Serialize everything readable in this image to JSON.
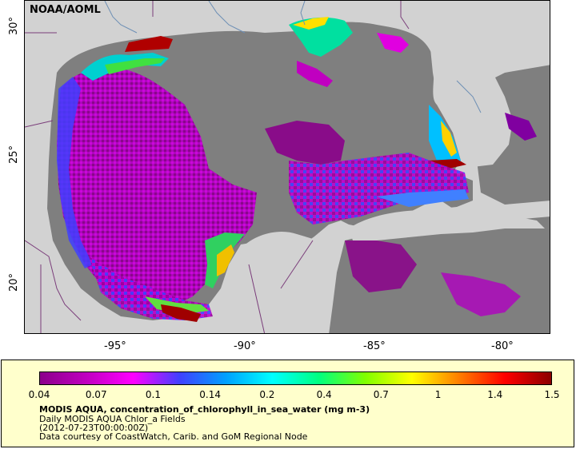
{
  "map": {
    "attribution": "NOAA/AOML",
    "lat_labels": [
      "30°",
      "25°",
      "20°"
    ],
    "lon_labels": [
      "-95°",
      "-90°",
      "-85°",
      "-80°"
    ],
    "colors": {
      "land": "#d2d2d2",
      "no_data_ocean": "#7f7f7f",
      "boundary": "#7a3d7a",
      "river": "#6d8fb5"
    }
  },
  "legend": {
    "tick_labels": [
      "0.04",
      "0.07",
      "0.1",
      "0.14",
      "0.2",
      "0.4",
      "0.7",
      "1",
      "1.4",
      "1.5"
    ],
    "title": "MODIS AQUA, concentration_of_chlorophyll_in_sea_water (mg m-3)",
    "dataset": "Daily MODIS AQUA Chlor_a Fields",
    "time": "(2012-07-23T00:00:00Z)",
    "credit": "Data courtesy of CoastWatch, Carib. and GoM Regional Node",
    "palette": [
      "#8b008b",
      "#c000c0",
      "#ff00ff",
      "#4040ff",
      "#00a0ff",
      "#00ffff",
      "#00ff80",
      "#80ff00",
      "#ffff00",
      "#ff8000",
      "#ff0000",
      "#8b0000"
    ],
    "background": "#ffffcc"
  }
}
